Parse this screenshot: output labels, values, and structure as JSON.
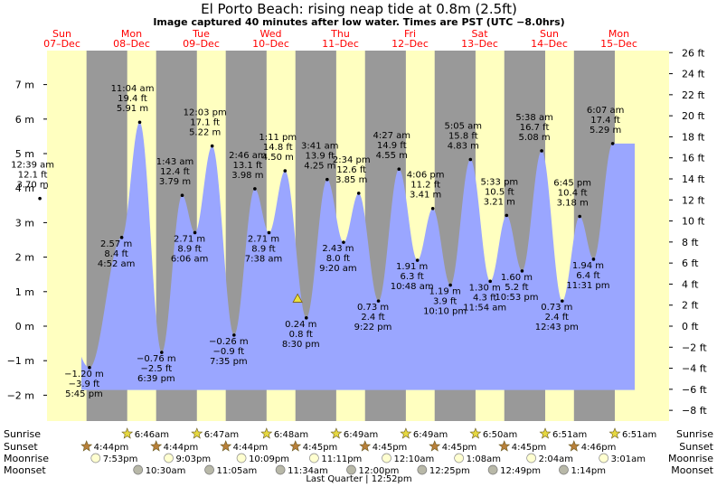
{
  "title": "El Porto Beach: rising  neap tide at 0.8m (2.5ft)",
  "subtitle": "Image captured 40 minutes after low water. Times are PST (UTC −8.0hrs)",
  "colors": {
    "day_bg": "#ffffc0",
    "night_bg": "#999999",
    "water": "#9aa6ff",
    "day_text": "#ff0000",
    "sun_marker": "#e6d840",
    "sunset_marker": "#b8803a",
    "moonrise_marker": "#ffffd0",
    "moonset_marker": "#b8b8a8",
    "current_marker": "#e8e040"
  },
  "days": [
    {
      "name": "Sun",
      "date": "07–Dec"
    },
    {
      "name": "Mon",
      "date": "08–Dec"
    },
    {
      "name": "Tue",
      "date": "09–Dec"
    },
    {
      "name": "Wed",
      "date": "10–Dec"
    },
    {
      "name": "Thu",
      "date": "11–Dec"
    },
    {
      "name": "Fri",
      "date": "12–Dec"
    },
    {
      "name": "Sat",
      "date": "13–Dec"
    },
    {
      "name": "Sun",
      "date": "14–Dec"
    },
    {
      "name": "Mon",
      "date": "15–Dec"
    }
  ],
  "chart_data": {
    "type": "area",
    "title": "El Porto Beach: rising  neap tide at 0.8m (2.5ft)",
    "x_unit": "hours since 00:00 Sun 07-Dec (PST)",
    "y_left_label": "m",
    "y_right_label": "ft",
    "ylim_m": [
      -2.75,
      8.0
    ],
    "y_ticks_m": [
      "7 m",
      "6 m",
      "5 m",
      "4 m",
      "3 m",
      "2 m",
      "1 m",
      "0 m",
      "−1 m",
      "−2 m"
    ],
    "y_ticks_ft": [
      "26 ft",
      "24 ft",
      "22 ft",
      "20 ft",
      "18 ft",
      "16 ft",
      "14 ft",
      "12 ft",
      "10 ft",
      "8 ft",
      "6 ft",
      "4 ft",
      "2 ft",
      "0 ft",
      "−2 ft",
      "−4 ft",
      "−6 ft",
      "−8 ft"
    ],
    "current_level_m": 0.8,
    "current_hour": 89.5,
    "tides": [
      {
        "label": [
          "12:39 am",
          "12.1 ft",
          "3.70 m"
        ],
        "type": "high"
      },
      {
        "label": [
          "−1.20 m",
          "−3.9 ft",
          "5:45 pm"
        ],
        "type": "low"
      },
      {
        "label": [
          "2.57 m",
          "8.4 ft",
          "4:52 am"
        ],
        "type": "low"
      },
      {
        "label": [
          "11:04 am",
          "19.4 ft",
          "5.91 m"
        ],
        "type": "high"
      },
      {
        "label": [
          "−0.76 m",
          "−2.5 ft",
          "6:39 pm"
        ],
        "type": "low"
      },
      {
        "label": [
          "1:43 am",
          "12.4 ft",
          "3.79 m"
        ],
        "type": "high"
      },
      {
        "label": [
          "2.71 m",
          "8.9 ft",
          "6:06 am"
        ],
        "type": "low"
      },
      {
        "label": [
          "12:03 pm",
          "17.1 ft",
          "5.22 m"
        ],
        "type": "high"
      },
      {
        "label": [
          "−0.26 m",
          "−0.9 ft",
          "7:35 pm"
        ],
        "type": "low"
      },
      {
        "label": [
          "2:46 am",
          "13.1 ft",
          "3.98 m"
        ],
        "type": "high"
      },
      {
        "label": [
          "2.71 m",
          "8.9 ft",
          "7:38 am"
        ],
        "type": "low"
      },
      {
        "label": [
          "1:11 pm",
          "14.8 ft",
          "4.50 m"
        ],
        "type": "high"
      },
      {
        "label": [
          "0.24 m",
          "0.8 ft",
          "8:30 pm"
        ],
        "type": "low"
      },
      {
        "label": [
          "3:41 am",
          "13.9 ft",
          "4.25 m"
        ],
        "type": "high"
      },
      {
        "label": [
          "2.43 m",
          "8.0 ft",
          "9:20 am"
        ],
        "type": "low"
      },
      {
        "label": [
          "2:34 pm",
          "12.6 ft",
          "3.85 m"
        ],
        "type": "high"
      },
      {
        "label": [
          "0.73 m",
          "2.4 ft",
          "9:22 pm"
        ],
        "type": "low"
      },
      {
        "label": [
          "4:27 am",
          "14.9 ft",
          "4.55 m"
        ],
        "type": "high"
      },
      {
        "label": [
          "1.91 m",
          "6.3 ft",
          "10:48 am"
        ],
        "type": "low"
      },
      {
        "label": [
          "4:06 pm",
          "11.2 ft",
          "3.41 m"
        ],
        "type": "high"
      },
      {
        "label": [
          "1.19 m",
          "3.9 ft",
          "10:10 pm"
        ],
        "type": "low"
      },
      {
        "label": [
          "5:05 am",
          "15.8 ft",
          "4.83 m"
        ],
        "type": "high"
      },
      {
        "label": [
          "1.30 m",
          "4.3 ft",
          "11:54 am"
        ],
        "type": "low"
      },
      {
        "label": [
          "5:33 pm",
          "10.5 ft",
          "3.21 m"
        ],
        "type": "high"
      },
      {
        "label": [
          "1.60 m",
          "5.2 ft",
          "10:53 pm"
        ],
        "type": "low"
      },
      {
        "label": [
          "5:38 am",
          "16.7 ft",
          "5.08 m"
        ],
        "type": "high"
      },
      {
        "label": [
          "0.73 m",
          "2.4 ft",
          "12:43 pm"
        ],
        "type": "low"
      },
      {
        "label": [
          "6:45 pm",
          "10.4 ft",
          "3.18 m"
        ],
        "type": "high"
      },
      {
        "label": [
          "1.94 m",
          "6.4 ft",
          "11:31 pm"
        ],
        "type": "low"
      },
      {
        "label": [
          "6:07 am",
          "17.4 ft",
          "5.29 m"
        ],
        "type": "high"
      }
    ]
  },
  "rows": {
    "sunrise_label": "Sunrise",
    "sunset_label": "Sunset",
    "moonrise_label": "Moonrise",
    "moonset_label": "Moonset",
    "sunrise": [
      "6:46am",
      "6:47am",
      "6:48am",
      "6:49am",
      "6:49am",
      "6:50am",
      "6:51am",
      "6:51am"
    ],
    "sunset": [
      "4:44pm",
      "4:44pm",
      "4:44pm",
      "4:45pm",
      "4:45pm",
      "4:45pm",
      "4:45pm",
      "4:46pm"
    ],
    "moonrise": [
      "7:53pm",
      "9:03pm",
      "10:09pm",
      "11:11pm",
      "12:10am",
      "1:08am",
      "2:04am",
      "3:01am"
    ],
    "moonset": [
      "10:30am",
      "11:05am",
      "11:34am",
      "12:00pm",
      "12:25pm",
      "12:49pm",
      "1:14pm"
    ]
  },
  "footer": "Last Quarter | 12:52pm"
}
